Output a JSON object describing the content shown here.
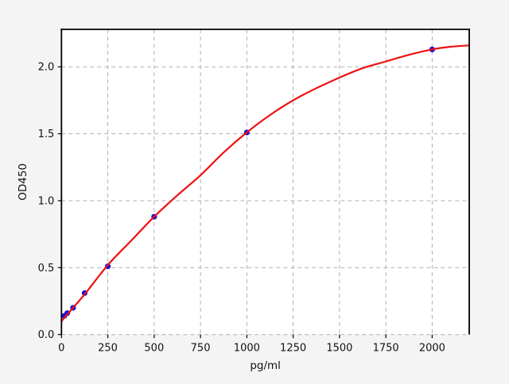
{
  "figure": {
    "background_color": "#f4f4f4",
    "plot_background_color": "#ffffff",
    "spine_color": "#000000",
    "grid_color": "#b0b0b0",
    "tick_color": "#000000"
  },
  "chart_data": {
    "type": "scatter",
    "title": "",
    "xlabel": "pg/ml",
    "ylabel": "OD450",
    "xlim": [
      0,
      2200
    ],
    "ylim": [
      0,
      2.28
    ],
    "xticks": [
      0,
      250,
      500,
      750,
      1000,
      1250,
      1500,
      1750,
      2000
    ],
    "yticks": [
      0.0,
      0.5,
      1.0,
      1.5,
      2.0
    ],
    "grid": "dashed",
    "legend_position": "none",
    "series": [
      {
        "name": "standard-points",
        "type": "scatter",
        "color": "#1414dd",
        "marker": "circle",
        "x": [
          15.6,
          31.25,
          62.5,
          125,
          250,
          500,
          1000,
          2000
        ],
        "y": [
          0.14,
          0.16,
          0.2,
          0.31,
          0.51,
          0.88,
          1.51,
          2.13
        ]
      },
      {
        "name": "fit-curve",
        "type": "line",
        "color": "#ee1111",
        "x": [
          0,
          62,
          125,
          250,
          375,
          500,
          625,
          750,
          875,
          1000,
          1125,
          1250,
          1375,
          1500,
          1625,
          1750,
          1875,
          2000,
          2100,
          2200
        ],
        "y": [
          0.1,
          0.2,
          0.3,
          0.52,
          0.7,
          0.88,
          1.04,
          1.19,
          1.36,
          1.51,
          1.64,
          1.75,
          1.84,
          1.92,
          1.99,
          2.04,
          2.09,
          2.13,
          2.15,
          2.16
        ]
      }
    ]
  }
}
